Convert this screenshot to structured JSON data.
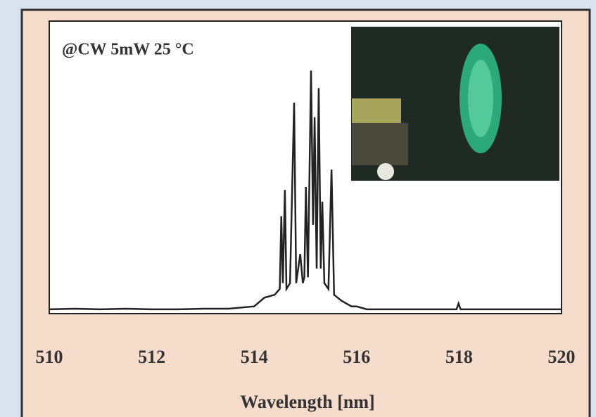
{
  "chart_data": {
    "type": "line",
    "annotation": "@CW 5mW 25 °C",
    "x_label": "Wavelength [nm]",
    "x": [
      510,
      510.5,
      511,
      511.5,
      512,
      512.5,
      513,
      513.5,
      514,
      514.2,
      514.4,
      514.5,
      514.53,
      514.56,
      514.6,
      514.63,
      514.7,
      514.78,
      514.82,
      514.9,
      514.95,
      514.98,
      515.01,
      515.05,
      515.11,
      515.15,
      515.18,
      515.22,
      515.26,
      515.3,
      515.33,
      515.37,
      515.45,
      515.51,
      515.56,
      515.7,
      515.9,
      516,
      516.2,
      517,
      517.95,
      517.99,
      518.03,
      519,
      520
    ],
    "series": [
      {
        "color": "#222222",
        "values": [
          0.01,
          0.012,
          0.01,
          0.012,
          0.01,
          0.01,
          0.012,
          0.012,
          0.02,
          0.05,
          0.06,
          0.08,
          0.33,
          0.1,
          0.42,
          0.08,
          0.1,
          0.72,
          0.1,
          0.2,
          0.1,
          0.12,
          0.43,
          0.12,
          0.83,
          0.3,
          0.67,
          0.15,
          0.77,
          0.15,
          0.38,
          0.1,
          0.08,
          0.49,
          0.06,
          0.04,
          0.02,
          0.02,
          0.01,
          0.01,
          0.01,
          0.03,
          0.01,
          0.01,
          0.01
        ]
      }
    ],
    "xlim": [
      510,
      520
    ],
    "xticks": [
      510,
      512,
      514,
      516,
      518,
      520
    ],
    "ylim": [
      0,
      1
    ],
    "grid": false
  }
}
